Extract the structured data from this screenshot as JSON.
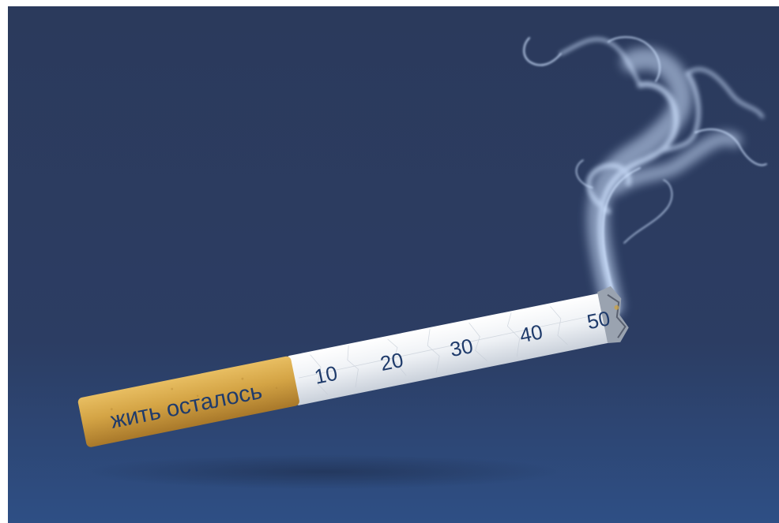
{
  "poster": {
    "filter_text": "жить осталось",
    "scale_marks": [
      "10",
      "20",
      "30",
      "40",
      "50"
    ]
  },
  "colors": {
    "background_top": "#2b3a5c",
    "background_bottom": "#2e4c80",
    "filter": "#d4a445",
    "paper": "#f1f3f6",
    "mark_text": "#1f3b6b",
    "filter_text": "#1f3b6b",
    "smoke": "#cfe2ff"
  }
}
